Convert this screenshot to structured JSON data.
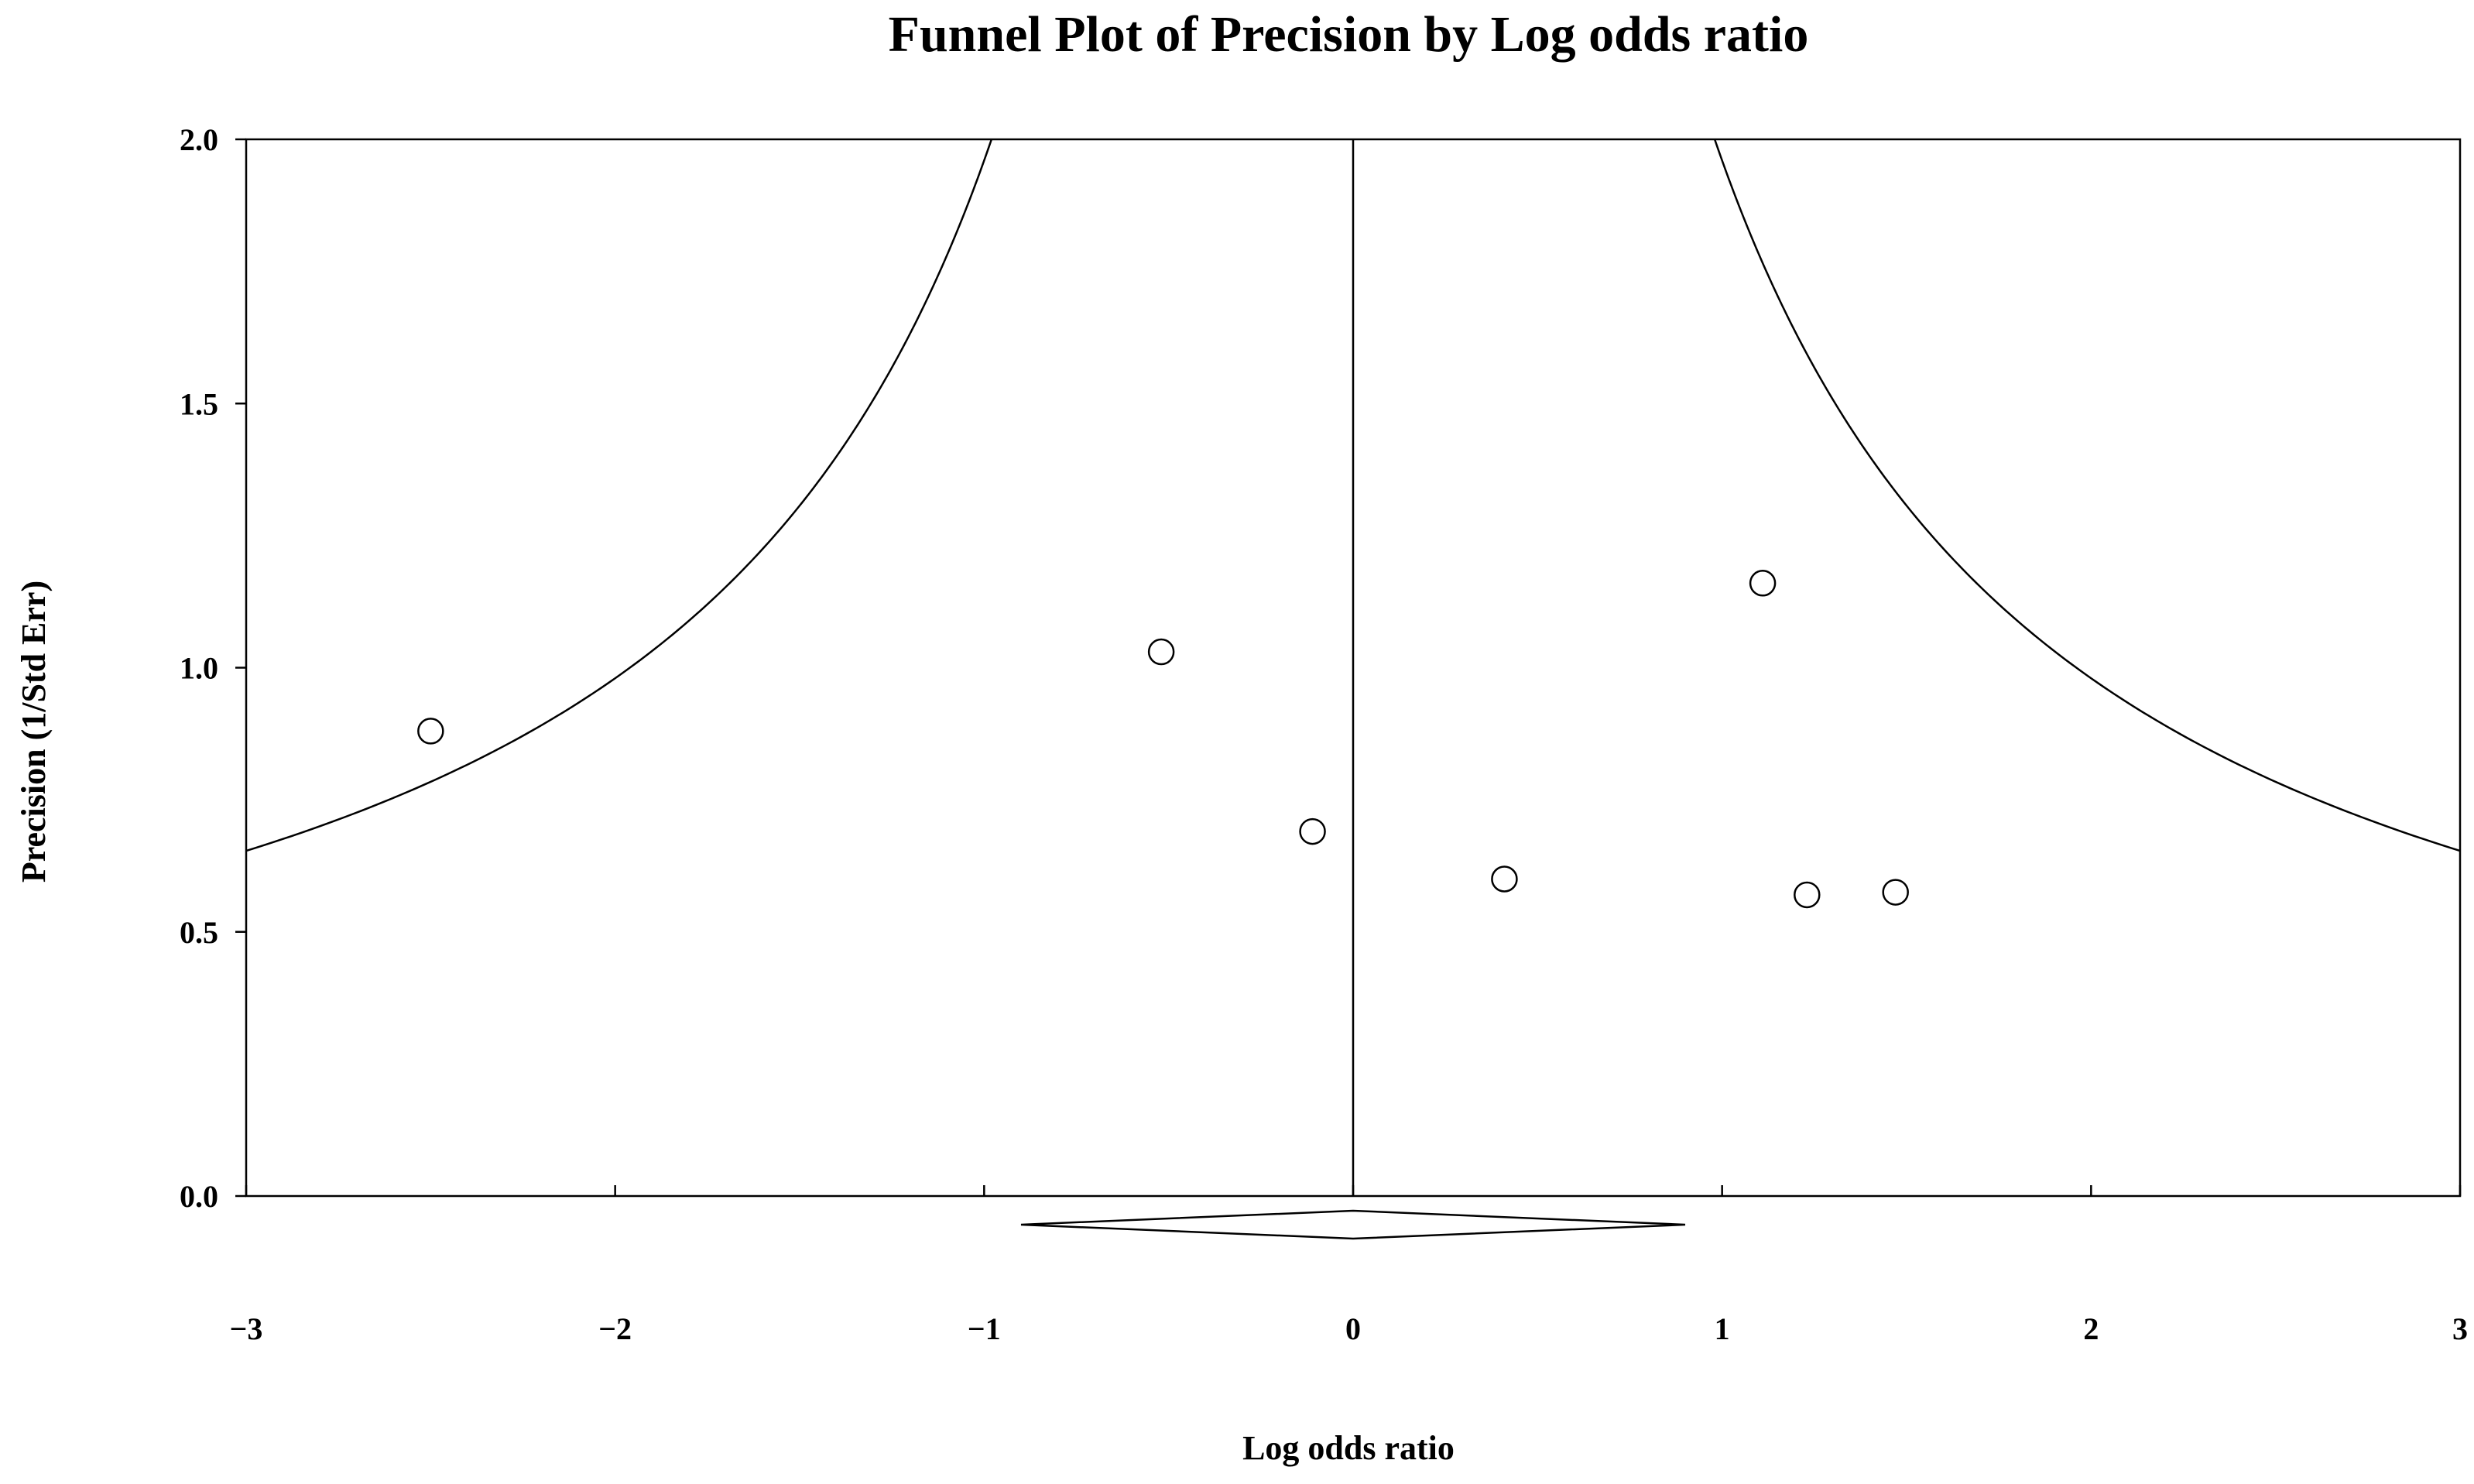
{
  "chart_data": {
    "type": "scatter",
    "title": "Funnel Plot of Precision by Log odds ratio",
    "xlabel": "Log odds ratio",
    "ylabel": "Precision (1/Std Err)",
    "xlim": [
      -3,
      3
    ],
    "ylim": [
      0,
      2
    ],
    "x_ticks": [
      -3,
      -2,
      -1,
      0,
      1,
      2,
      3
    ],
    "x_tick_labels": [
      "−3",
      "−2",
      "−1",
      "0",
      "1",
      "2",
      "3"
    ],
    "y_ticks": [
      0,
      0.5,
      1,
      1.5,
      2
    ],
    "y_tick_labels": [
      "0.0",
      "0.5",
      "1.0",
      "1.5",
      "2.0"
    ],
    "points": [
      {
        "x": -2.5,
        "y": 0.88
      },
      {
        "x": -0.52,
        "y": 1.03
      },
      {
        "x": -0.11,
        "y": 0.69
      },
      {
        "x": 0.41,
        "y": 0.6
      },
      {
        "x": 1.11,
        "y": 1.16
      },
      {
        "x": 1.23,
        "y": 0.57
      },
      {
        "x": 1.47,
        "y": 0.575
      }
    ],
    "pooled_estimate": 0.0,
    "funnel_limit_z": 1.96,
    "summary_diamond": {
      "center": 0.0,
      "lower": -0.9,
      "upper": 0.9
    },
    "grid": false,
    "legend": "none",
    "colors": {
      "line": "#000000",
      "marker_fill": "#ffffff"
    }
  }
}
